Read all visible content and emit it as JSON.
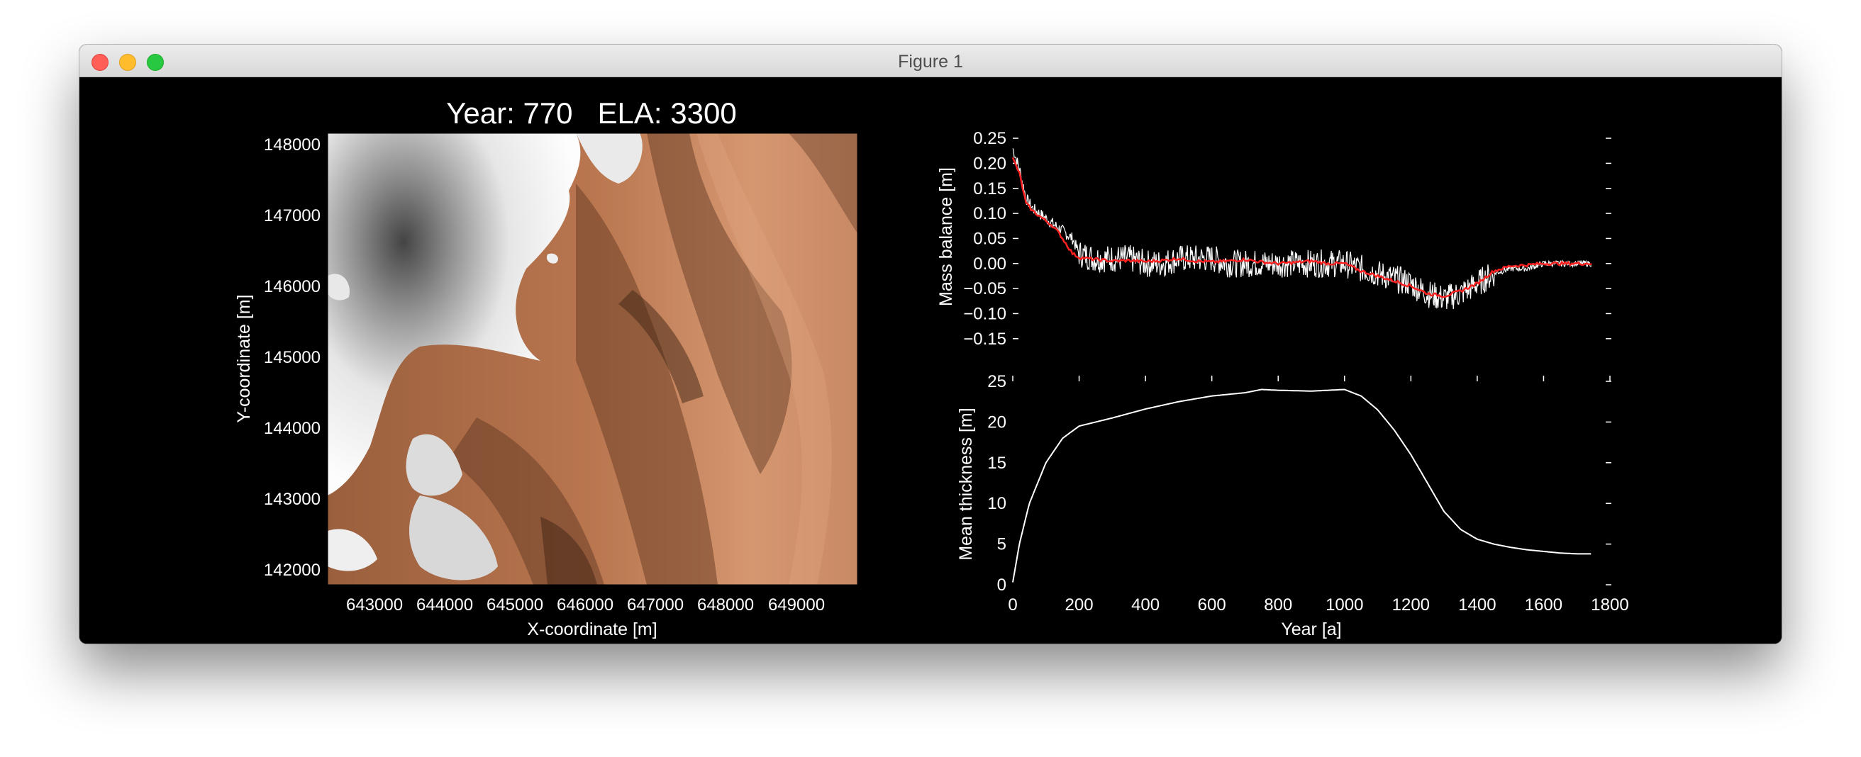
{
  "window": {
    "title": "Figure 1"
  },
  "map": {
    "title": "Year: 770   ELA: 3300",
    "xlabel": "X-coordinate [m]",
    "ylabel": "Y-coordinate [m]",
    "xticks": [
      "643000",
      "644000",
      "645000",
      "646000",
      "647000",
      "648000",
      "649000"
    ],
    "yticks": [
      "148000",
      "147000",
      "146000",
      "145000",
      "144000",
      "143000",
      "142000"
    ]
  },
  "chart_data": [
    {
      "type": "line",
      "ylabel": "Mass balance [m]",
      "xlim": [
        0,
        1800
      ],
      "ylim": [
        -0.18,
        0.26
      ],
      "yticks": [
        "0.25",
        "0.20",
        "0.15",
        "0.10",
        "0.05",
        "0.00",
        "−0.05",
        "−0.10",
        "−0.15"
      ],
      "series": [
        {
          "color": "#ffffff",
          "style": "noisy annual",
          "x": [
            0,
            20,
            40,
            60,
            80,
            100,
            120,
            140,
            160,
            180,
            200,
            250,
            300,
            350,
            400,
            450,
            500,
            550,
            600,
            650,
            700,
            750,
            800,
            850,
            900,
            950,
            1000,
            1050,
            1100,
            1150,
            1200,
            1250,
            1300,
            1350,
            1400,
            1450,
            1500,
            1550,
            1600,
            1650,
            1700,
            1750
          ],
          "y": [
            0.23,
            0.19,
            0.13,
            0.11,
            0.1,
            0.09,
            0.08,
            0.07,
            0.06,
            0.05,
            0.02,
            0.01,
            0.01,
            0.01,
            0.0,
            0.0,
            0.01,
            0.01,
            0.01,
            0.0,
            0.0,
            0.0,
            0.0,
            0.0,
            0.0,
            0.0,
            0.0,
            -0.01,
            -0.02,
            -0.03,
            -0.04,
            -0.06,
            -0.07,
            -0.06,
            -0.04,
            -0.02,
            -0.01,
            -0.01,
            0.0,
            0.0,
            0.0,
            0.0
          ]
        },
        {
          "color": "#ff2020",
          "style": "smoothed",
          "x": [
            0,
            20,
            40,
            60,
            80,
            100,
            120,
            140,
            160,
            180,
            200,
            250,
            300,
            350,
            400,
            450,
            500,
            550,
            600,
            650,
            700,
            750,
            800,
            850,
            900,
            950,
            1000,
            1050,
            1100,
            1150,
            1200,
            1250,
            1300,
            1350,
            1400,
            1450,
            1500,
            1550,
            1600,
            1650,
            1700,
            1750
          ],
          "y": [
            0.21,
            0.18,
            0.12,
            0.105,
            0.095,
            0.085,
            0.075,
            0.06,
            0.04,
            0.02,
            0.012,
            0.008,
            0.005,
            0.006,
            0.004,
            0.006,
            0.01,
            0.005,
            0.003,
            0.005,
            0.008,
            0.003,
            0.0,
            0.002,
            0.005,
            0.0,
            0.0,
            -0.015,
            -0.025,
            -0.035,
            -0.045,
            -0.06,
            -0.065,
            -0.055,
            -0.04,
            -0.015,
            -0.005,
            -0.003,
            0.0,
            0.0,
            0.0,
            0.0
          ]
        }
      ]
    },
    {
      "type": "line",
      "xlabel": "Year [a]",
      "ylabel": "Mean thickness [m]",
      "xlim": [
        0,
        1800
      ],
      "ylim": [
        0,
        25
      ],
      "xticks": [
        "0",
        "200",
        "400",
        "600",
        "800",
        "1000",
        "1200",
        "1400",
        "1600",
        "1800"
      ],
      "yticks": [
        "25",
        "20",
        "15",
        "10",
        "5",
        "0"
      ],
      "series": [
        {
          "color": "#ffffff",
          "x": [
            0,
            20,
            50,
            100,
            150,
            200,
            250,
            300,
            400,
            500,
            600,
            700,
            750,
            800,
            900,
            1000,
            1050,
            1100,
            1150,
            1200,
            1250,
            1300,
            1350,
            1400,
            1450,
            1500,
            1550,
            1600,
            1650,
            1700,
            1750
          ],
          "y": [
            0.3,
            5,
            10,
            15,
            18,
            19.5,
            20,
            20.5,
            21.6,
            22.5,
            23.2,
            23.6,
            24,
            23.9,
            23.8,
            24,
            23.2,
            21.5,
            19,
            16,
            12.5,
            9,
            6.8,
            5.6,
            5,
            4.6,
            4.3,
            4.1,
            3.9,
            3.8,
            3.8
          ]
        }
      ]
    }
  ]
}
